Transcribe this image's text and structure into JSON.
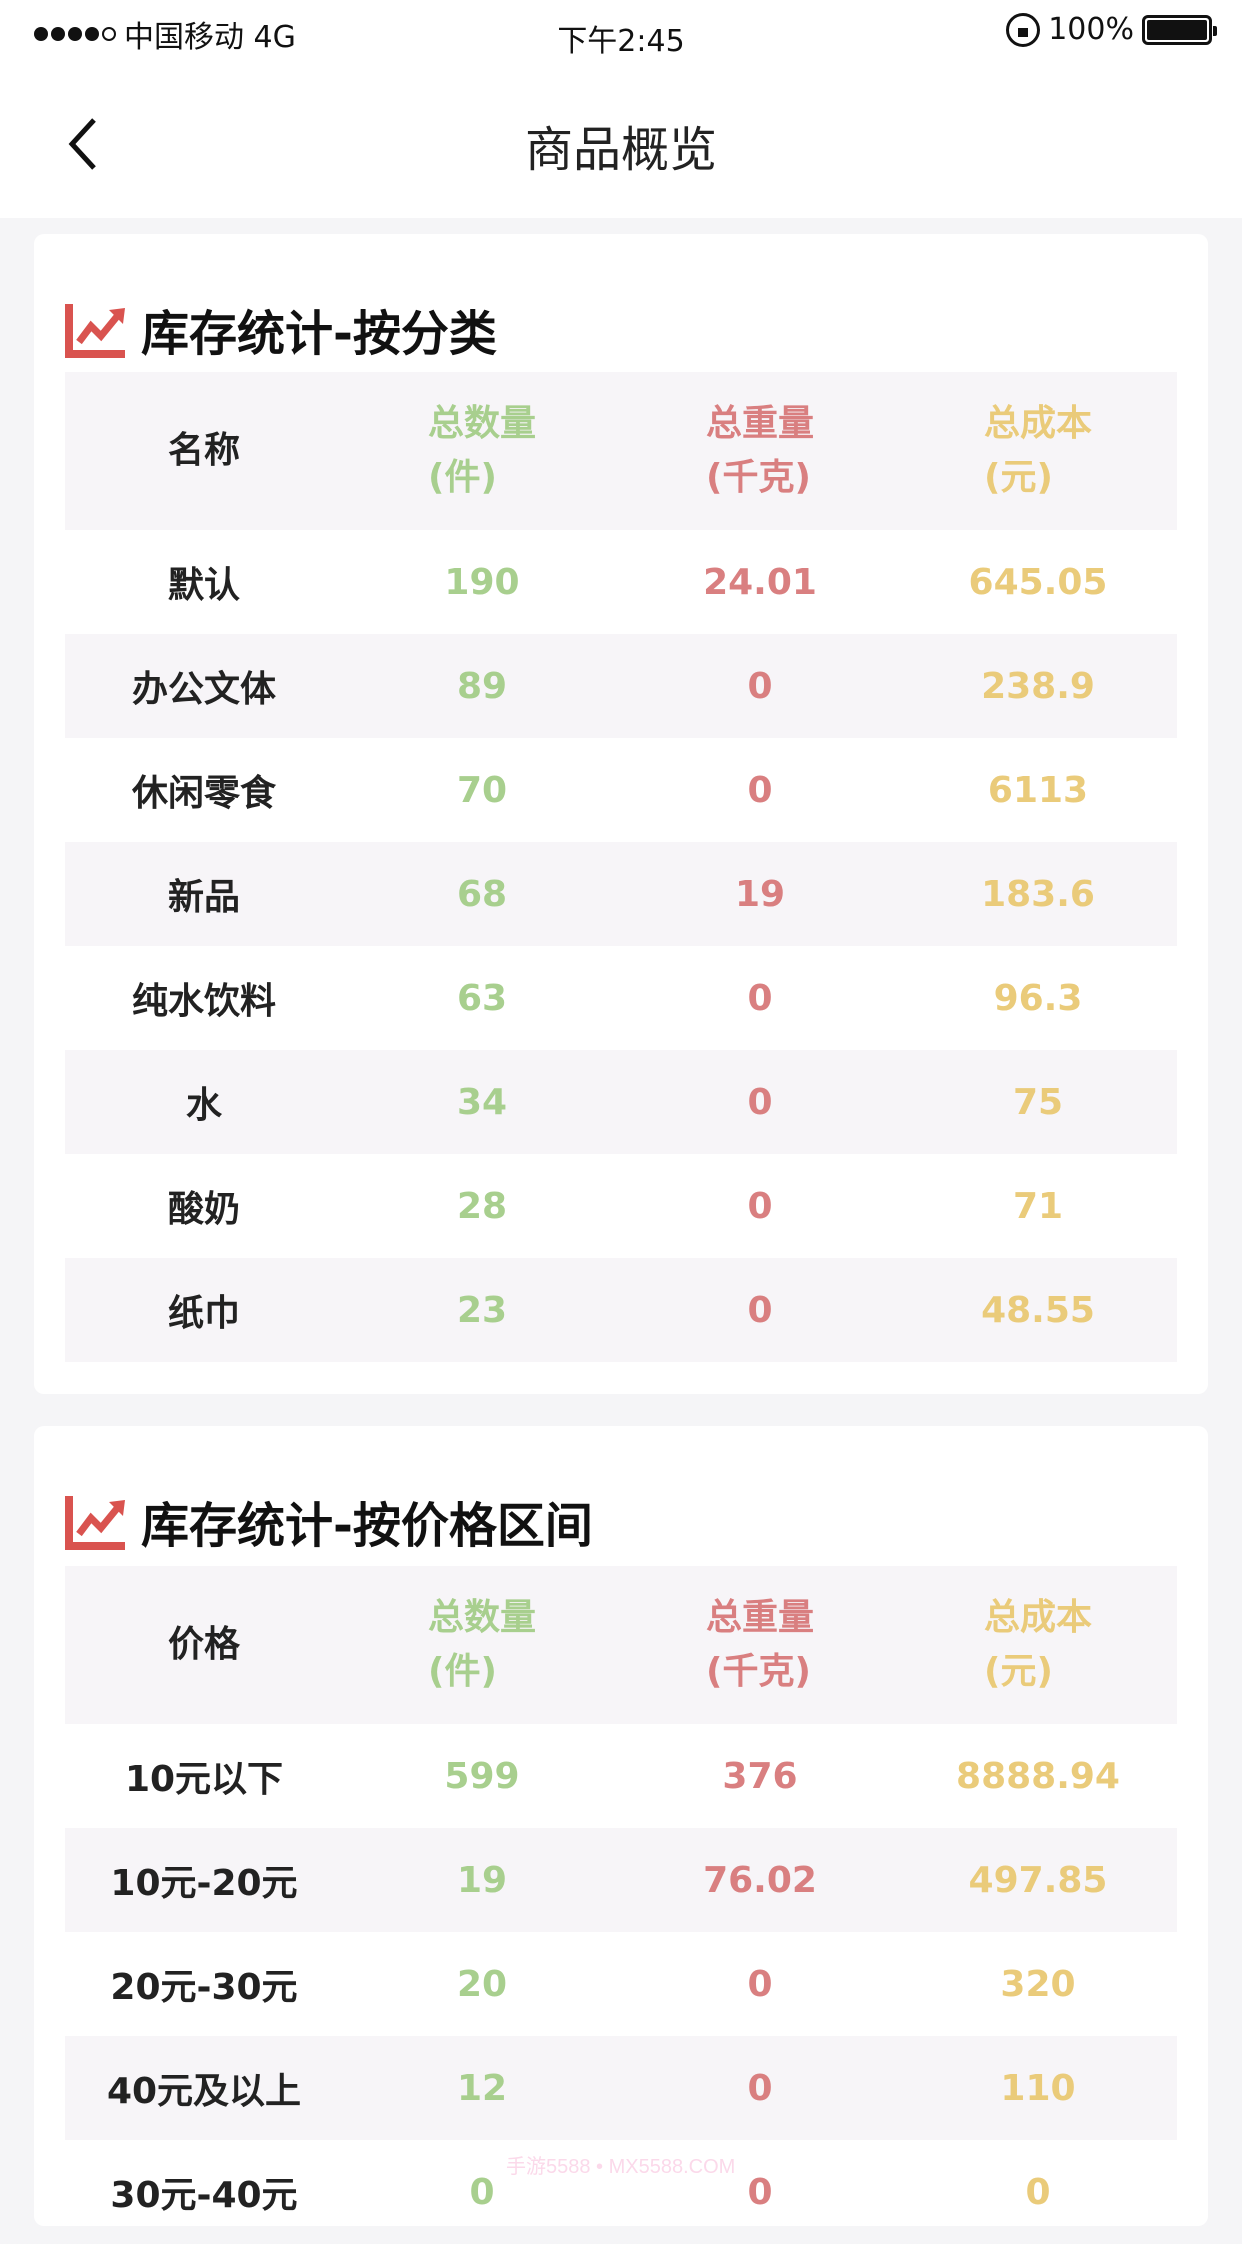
{
  "status_bar": {
    "carrier": "中国移动 4G",
    "time": "下午2:45",
    "battery": "100%",
    "signal_bars": 4
  },
  "nav": {
    "title": "商品概览",
    "back_icon": "chevron-left-icon"
  },
  "colors": {
    "quantity": "#a8cf8e",
    "weight": "#d97f80",
    "cost": "#eacb7a",
    "icon": "#d9534f"
  },
  "category_card": {
    "title": "库存统计-按分类",
    "icon": "trend-chart-icon",
    "headers": [
      [
        "名称",
        ""
      ],
      [
        "总数量",
        "(件)"
      ],
      [
        "总重量",
        "(千克)"
      ],
      [
        "总成本",
        "(元)"
      ]
    ],
    "rows": [
      [
        "默认",
        "190",
        "24.01",
        "645.05"
      ],
      [
        "办公文体",
        "89",
        "0",
        "238.9"
      ],
      [
        "休闲零食",
        "70",
        "0",
        "6113"
      ],
      [
        "新品",
        "68",
        "19",
        "183.6"
      ],
      [
        "纯水饮料",
        "63",
        "0",
        "96.3"
      ],
      [
        "水",
        "34",
        "0",
        "75"
      ],
      [
        "酸奶",
        "28",
        "0",
        "71"
      ],
      [
        "纸巾",
        "23",
        "0",
        "48.55"
      ]
    ]
  },
  "price_card": {
    "title": "库存统计-按价格区间",
    "icon": "trend-chart-icon",
    "headers": [
      [
        "价格",
        ""
      ],
      [
        "总数量",
        "(件)"
      ],
      [
        "总重量",
        "(千克)"
      ],
      [
        "总成本",
        "(元)"
      ]
    ],
    "rows": [
      [
        "10元以下",
        "599",
        "376",
        "8888.94"
      ],
      [
        "10元-20元",
        "19",
        "76.02",
        "497.85"
      ],
      [
        "20元-30元",
        "20",
        "0",
        "320"
      ],
      [
        "40元及以上",
        "12",
        "0",
        "110"
      ],
      [
        "30元-40元",
        "0",
        "0",
        "0"
      ]
    ]
  },
  "watermark": "手游5588 • MX5588.COM"
}
